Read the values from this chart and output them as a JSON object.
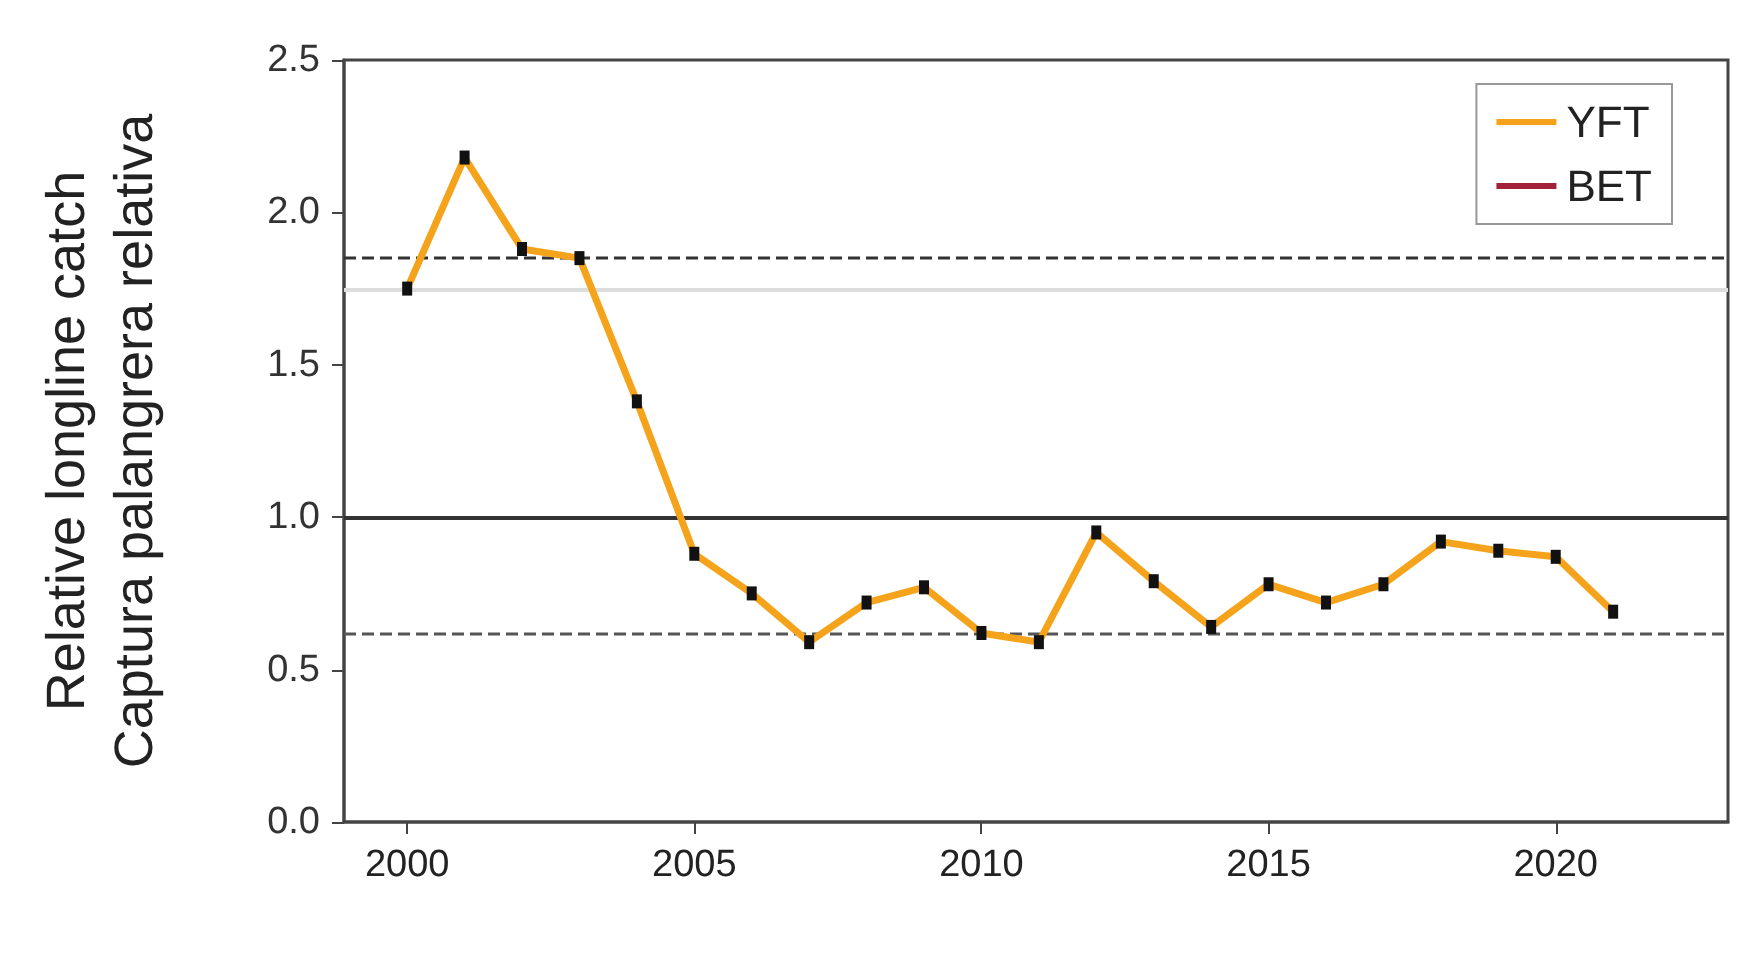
{
  "chart_data": {
    "type": "line",
    "ylabel": "Relative longline catch\nCaptura palangrera relativa",
    "x": [
      2000,
      2001,
      2002,
      2003,
      2004,
      2005,
      2006,
      2007,
      2008,
      2009,
      2010,
      2011,
      2012,
      2013,
      2014,
      2015,
      2016,
      2017,
      2018,
      2019,
      2020,
      2021
    ],
    "series": [
      {
        "name": "YFT",
        "color": "#f5a31a",
        "values": [
          1.75,
          2.18,
          1.88,
          1.85,
          1.38,
          0.88,
          0.75,
          0.59,
          0.72,
          0.77,
          0.62,
          0.59,
          0.95,
          0.79,
          0.64,
          0.78,
          0.72,
          0.78,
          0.92,
          0.89,
          0.87,
          0.69
        ]
      },
      {
        "name": "BET",
        "color": "#a3203b",
        "values": [
          null,
          null,
          null,
          null,
          null,
          null,
          null,
          null,
          null,
          null,
          null,
          null,
          null,
          null,
          null,
          null,
          null,
          null,
          null,
          null,
          null,
          null
        ]
      }
    ],
    "xlim": [
      1998.9,
      2023
    ],
    "xticks": [
      2000,
      2005,
      2010,
      2015,
      2020
    ],
    "ylim": [
      0,
      2.5
    ],
    "yticks": [
      {
        "value": 0,
        "label": "0.0"
      },
      0.5,
      {
        "value": 1,
        "label": "1.0"
      },
      1.5,
      {
        "value": 2,
        "label": "2.0"
      },
      2.5
    ],
    "ref_lines": [
      {
        "axis": "y",
        "value": 1.0,
        "color": "#333333",
        "line_style": "solid"
      },
      {
        "axis": "y",
        "value": 1.85,
        "color": "#333333",
        "line_style": "dashed"
      },
      {
        "axis": "y",
        "value": 1.75,
        "color": "#dddddd",
        "line_style": "solid"
      },
      {
        "axis": "y",
        "value": 0.62,
        "color": "#555555",
        "line_style": "dashed"
      }
    ],
    "marker": "square",
    "line_style": "solid",
    "grid": false,
    "legend": "top right"
  }
}
